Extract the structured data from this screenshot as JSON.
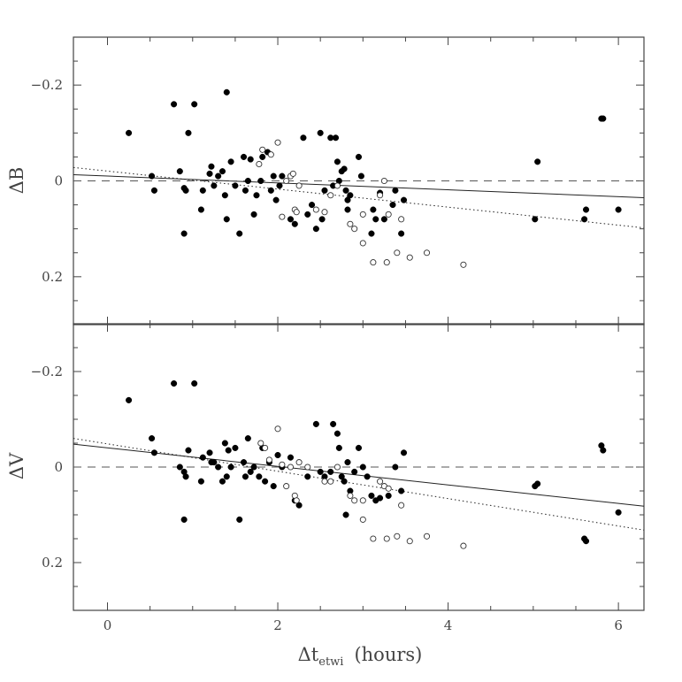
{
  "chart_data": [
    {
      "type": "scatter",
      "panel": "top",
      "ylabel": "ΔB",
      "xlim": [
        -0.4,
        6.3
      ],
      "ylim": [
        0.3,
        -0.3
      ],
      "y_inverted": true,
      "yticks": [
        -0.2,
        0,
        0.2
      ],
      "ytick_labels": [
        "−0.2",
        "0",
        "0.2"
      ],
      "grid": false,
      "series": [
        {
          "marker": "filled-circle",
          "points": [
            [
              0.25,
              -0.1
            ],
            [
              0.52,
              -0.01
            ],
            [
              0.55,
              0.02
            ],
            [
              0.78,
              -0.16
            ],
            [
              0.85,
              -0.02
            ],
            [
              0.9,
              0.11
            ],
            [
              0.9,
              0.015
            ],
            [
              0.92,
              0.02
            ],
            [
              0.95,
              -0.1
            ],
            [
              1.02,
              -0.16
            ],
            [
              1.1,
              0.06
            ],
            [
              1.12,
              0.02
            ],
            [
              1.2,
              -0.015
            ],
            [
              1.22,
              -0.03
            ],
            [
              1.25,
              0.01
            ],
            [
              1.3,
              -0.01
            ],
            [
              1.35,
              -0.02
            ],
            [
              1.38,
              0.03
            ],
            [
              1.4,
              -0.185
            ],
            [
              1.4,
              0.08
            ],
            [
              1.45,
              -0.04
            ],
            [
              1.5,
              0.01
            ],
            [
              1.55,
              0.11
            ],
            [
              1.6,
              -0.05
            ],
            [
              1.62,
              0.02
            ],
            [
              1.65,
              0.0
            ],
            [
              1.68,
              -0.045
            ],
            [
              1.72,
              0.07
            ],
            [
              1.75,
              0.03
            ],
            [
              1.8,
              0.0
            ],
            [
              1.82,
              -0.05
            ],
            [
              1.88,
              -0.06
            ],
            [
              1.92,
              0.02
            ],
            [
              1.95,
              -0.01
            ],
            [
              1.98,
              0.04
            ],
            [
              2.02,
              0.01
            ],
            [
              2.05,
              -0.01
            ],
            [
              2.15,
              0.08
            ],
            [
              2.2,
              0.09
            ],
            [
              2.3,
              -0.09
            ],
            [
              2.35,
              0.07
            ],
            [
              2.4,
              0.05
            ],
            [
              2.45,
              0.1
            ],
            [
              2.5,
              -0.1
            ],
            [
              2.52,
              0.08
            ],
            [
              2.55,
              0.02
            ],
            [
              2.62,
              -0.09
            ],
            [
              2.65,
              0.01
            ],
            [
              2.68,
              -0.09
            ],
            [
              2.7,
              -0.04
            ],
            [
              2.72,
              0.0
            ],
            [
              2.75,
              -0.02
            ],
            [
              2.78,
              -0.025
            ],
            [
              2.8,
              0.02
            ],
            [
              2.82,
              0.06
            ],
            [
              2.82,
              0.04
            ],
            [
              2.85,
              0.03
            ],
            [
              2.95,
              -0.05
            ],
            [
              2.98,
              -0.01
            ],
            [
              3.1,
              0.11
            ],
            [
              3.12,
              0.06
            ],
            [
              3.15,
              0.08
            ],
            [
              3.2,
              0.025
            ],
            [
              3.25,
              0.08
            ],
            [
              3.35,
              0.05
            ],
            [
              3.38,
              0.02
            ],
            [
              3.45,
              0.11
            ],
            [
              3.48,
              0.04
            ],
            [
              5.02,
              0.08
            ],
            [
              5.05,
              -0.04
            ],
            [
              5.6,
              0.08
            ],
            [
              5.62,
              0.06
            ],
            [
              5.8,
              -0.13
            ],
            [
              5.82,
              -0.13
            ],
            [
              6.0,
              0.06
            ]
          ]
        },
        {
          "marker": "open-circle",
          "points": [
            [
              1.78,
              -0.035
            ],
            [
              1.82,
              -0.065
            ],
            [
              1.92,
              -0.055
            ],
            [
              2.0,
              -0.08
            ],
            [
              2.05,
              0.075
            ],
            [
              2.1,
              0.0
            ],
            [
              2.15,
              -0.01
            ],
            [
              2.18,
              -0.015
            ],
            [
              2.2,
              0.06
            ],
            [
              2.22,
              0.065
            ],
            [
              2.25,
              0.01
            ],
            [
              2.45,
              0.06
            ],
            [
              2.55,
              0.065
            ],
            [
              2.62,
              0.03
            ],
            [
              2.7,
              0.01
            ],
            [
              2.85,
              0.09
            ],
            [
              2.9,
              0.1
            ],
            [
              3.0,
              0.07
            ],
            [
              3.0,
              0.13
            ],
            [
              3.12,
              0.17
            ],
            [
              3.2,
              0.03
            ],
            [
              3.25,
              0.0
            ],
            [
              3.28,
              0.17
            ],
            [
              3.3,
              0.07
            ],
            [
              3.4,
              0.15
            ],
            [
              3.55,
              0.16
            ],
            [
              3.75,
              0.15
            ],
            [
              4.18,
              0.175
            ],
            [
              3.45,
              0.08
            ]
          ]
        }
      ],
      "fit_lines": [
        {
          "style": "solid",
          "x": [
            -0.4,
            6.3
          ],
          "y": [
            -0.013,
            0.035
          ]
        },
        {
          "style": "dotted",
          "x": [
            -0.4,
            6.3
          ],
          "y": [
            -0.028,
            0.098
          ]
        },
        {
          "style": "dashed",
          "x": [
            -0.4,
            6.3
          ],
          "y": [
            0,
            0
          ]
        }
      ]
    },
    {
      "type": "scatter",
      "panel": "bottom",
      "ylabel": "ΔV",
      "xlabel_main": "Δt",
      "xlabel_sub": "etwi",
      "xlabel_unit": "(hours)",
      "xlim": [
        -0.4,
        6.3
      ],
      "ylim": [
        0.3,
        -0.3
      ],
      "y_inverted": true,
      "xticks": [
        0,
        2,
        4,
        6
      ],
      "xtick_labels": [
        "0",
        "2",
        "4",
        "6"
      ],
      "yticks": [
        -0.2,
        0,
        0.2
      ],
      "ytick_labels": [
        "−0.2",
        "0",
        "0.2"
      ],
      "grid": false,
      "series": [
        {
          "marker": "filled-circle",
          "points": [
            [
              0.25,
              -0.14
            ],
            [
              0.52,
              -0.06
            ],
            [
              0.55,
              -0.03
            ],
            [
              0.78,
              -0.175
            ],
            [
              0.85,
              0.0
            ],
            [
              0.9,
              0.11
            ],
            [
              0.9,
              0.01
            ],
            [
              0.92,
              0.02
            ],
            [
              0.95,
              -0.035
            ],
            [
              1.02,
              -0.175
            ],
            [
              1.1,
              0.03
            ],
            [
              1.12,
              -0.02
            ],
            [
              1.2,
              -0.03
            ],
            [
              1.22,
              -0.01
            ],
            [
              1.25,
              -0.01
            ],
            [
              1.3,
              0.0
            ],
            [
              1.35,
              0.03
            ],
            [
              1.38,
              -0.05
            ],
            [
              1.4,
              0.02
            ],
            [
              1.42,
              -0.035
            ],
            [
              1.45,
              0.0
            ],
            [
              1.5,
              -0.04
            ],
            [
              1.55,
              0.11
            ],
            [
              1.6,
              -0.01
            ],
            [
              1.62,
              0.02
            ],
            [
              1.65,
              -0.06
            ],
            [
              1.68,
              0.01
            ],
            [
              1.72,
              0.0
            ],
            [
              1.78,
              0.02
            ],
            [
              1.82,
              -0.04
            ],
            [
              1.85,
              0.03
            ],
            [
              1.9,
              -0.01
            ],
            [
              1.95,
              0.04
            ],
            [
              2.0,
              -0.025
            ],
            [
              2.05,
              0.0
            ],
            [
              2.15,
              -0.02
            ],
            [
              2.2,
              0.07
            ],
            [
              2.25,
              0.08
            ],
            [
              2.35,
              0.02
            ],
            [
              2.45,
              -0.09
            ],
            [
              2.5,
              0.01
            ],
            [
              2.55,
              0.02
            ],
            [
              2.62,
              0.01
            ],
            [
              2.65,
              -0.09
            ],
            [
              2.7,
              -0.07
            ],
            [
              2.72,
              -0.04
            ],
            [
              2.75,
              0.02
            ],
            [
              2.78,
              0.03
            ],
            [
              2.8,
              0.1
            ],
            [
              2.82,
              -0.01
            ],
            [
              2.85,
              0.05
            ],
            [
              2.9,
              0.01
            ],
            [
              2.95,
              -0.04
            ],
            [
              3.0,
              0.0
            ],
            [
              3.05,
              0.02
            ],
            [
              3.1,
              0.06
            ],
            [
              3.15,
              0.07
            ],
            [
              3.2,
              0.065
            ],
            [
              3.3,
              0.06
            ],
            [
              3.38,
              0.0
            ],
            [
              3.45,
              0.05
            ],
            [
              3.48,
              -0.03
            ],
            [
              5.02,
              0.04
            ],
            [
              5.05,
              0.035
            ],
            [
              5.6,
              0.15
            ],
            [
              5.62,
              0.155
            ],
            [
              5.8,
              -0.045
            ],
            [
              5.82,
              -0.035
            ],
            [
              6.0,
              0.095
            ]
          ]
        },
        {
          "marker": "open-circle",
          "points": [
            [
              1.8,
              -0.05
            ],
            [
              1.85,
              -0.04
            ],
            [
              1.9,
              -0.015
            ],
            [
              2.0,
              -0.08
            ],
            [
              2.05,
              -0.005
            ],
            [
              2.1,
              0.04
            ],
            [
              2.15,
              0.0
            ],
            [
              2.2,
              0.06
            ],
            [
              2.22,
              0.07
            ],
            [
              2.25,
              -0.01
            ],
            [
              2.35,
              0.0
            ],
            [
              2.55,
              0.03
            ],
            [
              2.62,
              0.03
            ],
            [
              2.7,
              0.0
            ],
            [
              2.85,
              0.06
            ],
            [
              2.9,
              0.07
            ],
            [
              3.0,
              0.07
            ],
            [
              3.0,
              0.11
            ],
            [
              3.12,
              0.15
            ],
            [
              3.2,
              0.03
            ],
            [
              3.25,
              0.04
            ],
            [
              3.28,
              0.15
            ],
            [
              3.3,
              0.045
            ],
            [
              3.4,
              0.145
            ],
            [
              3.55,
              0.155
            ],
            [
              3.75,
              0.145
            ],
            [
              4.18,
              0.165
            ],
            [
              3.45,
              0.08
            ]
          ]
        }
      ],
      "fit_lines": [
        {
          "style": "solid",
          "x": [
            -0.4,
            6.3
          ],
          "y": [
            -0.048,
            0.082
          ]
        },
        {
          "style": "dotted",
          "x": [
            -0.4,
            6.3
          ],
          "y": [
            -0.06,
            0.132
          ]
        },
        {
          "style": "dashed",
          "x": [
            -0.4,
            6.3
          ],
          "y": [
            0,
            0
          ]
        }
      ]
    }
  ]
}
